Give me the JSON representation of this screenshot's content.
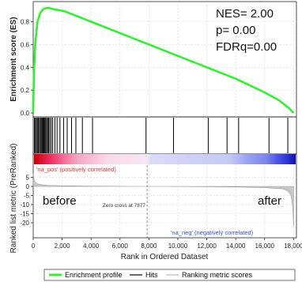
{
  "chart_data": {
    "type": "line",
    "top_panel": {
      "ylabel": "Enrichment score (ES)",
      "ylim": [
        0.0,
        0.9
      ],
      "yticks": [
        {
          "value": 0.0,
          "label": "0.0"
        },
        {
          "value": 0.2,
          "label": "0.2"
        },
        {
          "value": 0.4,
          "label": "0.4"
        },
        {
          "value": 0.6,
          "label": "0.6"
        },
        {
          "value": 0.8,
          "label": "0.8"
        }
      ],
      "stats": [
        "NES= 2.00",
        "p= 0.00",
        "FDRq=0.00"
      ],
      "series": [
        {
          "name": "Enrichment profile",
          "color": "#33ee33",
          "x": [
            0,
            50,
            150,
            300,
            500,
            700,
            900,
            1100,
            1400,
            1800,
            2200,
            3000,
            4000,
            5000,
            6000,
            7000,
            8000,
            9000,
            10000,
            11000,
            12000,
            13000,
            14000,
            15000,
            16000,
            17000,
            17700,
            18000
          ],
          "y": [
            0.0,
            0.35,
            0.62,
            0.8,
            0.88,
            0.91,
            0.92,
            0.92,
            0.91,
            0.9,
            0.89,
            0.85,
            0.8,
            0.75,
            0.7,
            0.65,
            0.6,
            0.55,
            0.5,
            0.45,
            0.4,
            0.35,
            0.3,
            0.24,
            0.18,
            0.11,
            0.04,
            0.0
          ]
        }
      ]
    },
    "hits": {
      "name": "Hits",
      "positions": [
        80,
        150,
        220,
        290,
        360,
        430,
        500,
        560,
        620,
        680,
        740,
        800,
        860,
        930,
        1000,
        1070,
        1150,
        1250,
        1350,
        1500,
        1650,
        1850,
        2100,
        2350,
        2650,
        2950,
        3400,
        4100,
        7800,
        9700,
        12100,
        13400,
        14200,
        16300,
        17600
      ]
    },
    "heatmap_bar": {
      "stops": [
        {
          "x": 0,
          "color": "#cc0000"
        },
        {
          "x": 900,
          "color": "#e8214f"
        },
        {
          "x": 1800,
          "color": "#f25c8a"
        },
        {
          "x": 3000,
          "color": "#f7a6c6"
        },
        {
          "x": 5000,
          "color": "#fbd8e8"
        },
        {
          "x": 7800,
          "color": "#f5e8f3"
        },
        {
          "x": 8000,
          "color": "#d9dcf8"
        },
        {
          "x": 13500,
          "color": "#c4c8f6"
        },
        {
          "x": 14700,
          "color": "#9aa2f2"
        },
        {
          "x": 16000,
          "color": "#7a84ee"
        },
        {
          "x": 16700,
          "color": "#4f55e6"
        },
        {
          "x": 17500,
          "color": "#2a2fd2"
        },
        {
          "x": 18000,
          "color": "#1010a0"
        }
      ]
    },
    "bottom_panel": {
      "ylabel": "Ranked list metric (PreRanked)",
      "xlabel": "Rank in Ordered Dataset",
      "xlim": [
        0,
        18200
      ],
      "ylim": [
        -25,
        7
      ],
      "yticks": [
        {
          "value": 5,
          "label": "5"
        },
        {
          "value": 0,
          "label": "0"
        },
        {
          "value": -5,
          "label": "-5"
        },
        {
          "value": -10,
          "label": "-10"
        },
        {
          "value": -15,
          "label": "-15"
        },
        {
          "value": -20,
          "label": "-20"
        }
      ],
      "xticks": [
        {
          "value": 0,
          "label": "0"
        },
        {
          "value": 2000,
          "label": "2,000"
        },
        {
          "value": 4000,
          "label": "4,000"
        },
        {
          "value": 6000,
          "label": "6,000"
        },
        {
          "value": 8000,
          "label": "8,000"
        },
        {
          "value": 10000,
          "label": "10,000"
        },
        {
          "value": 12000,
          "label": "12,000"
        },
        {
          "value": 14000,
          "label": "14,000"
        },
        {
          "value": 16000,
          "label": "16,000"
        },
        {
          "value": 18000,
          "label": "18,000"
        }
      ],
      "metric_series": {
        "name": "Ranking metric scores",
        "color": "#aaaaaa",
        "x": [
          0,
          30,
          80,
          150,
          300,
          600,
          1000,
          2000,
          4000,
          6000,
          7877,
          10000,
          14000,
          16000,
          17300,
          17600,
          17800,
          17900,
          17960,
          18000
        ],
        "y": [
          7,
          5,
          3.5,
          2.2,
          1.4,
          0.9,
          0.6,
          0.35,
          0.15,
          0.05,
          0,
          -0.05,
          -0.3,
          -0.7,
          -1.4,
          -2.5,
          -4.5,
          -8,
          -14,
          -22
        ]
      },
      "zero_cross": {
        "x": 7877,
        "label": "Zero cross at 7877"
      },
      "pos_label": "'na_pos' (positively correlated)",
      "neg_label": "'na_neg' (negatively correlated)",
      "before_label": "before",
      "after_label": "after"
    },
    "legend": [
      {
        "name": "Enrichment profile",
        "color": "#33ee33",
        "style": "thick"
      },
      {
        "name": "Hits",
        "color": "#000000",
        "style": "thin"
      },
      {
        "name": "Ranking metric scores",
        "color": "#bbbbbb",
        "style": "thin"
      }
    ]
  }
}
